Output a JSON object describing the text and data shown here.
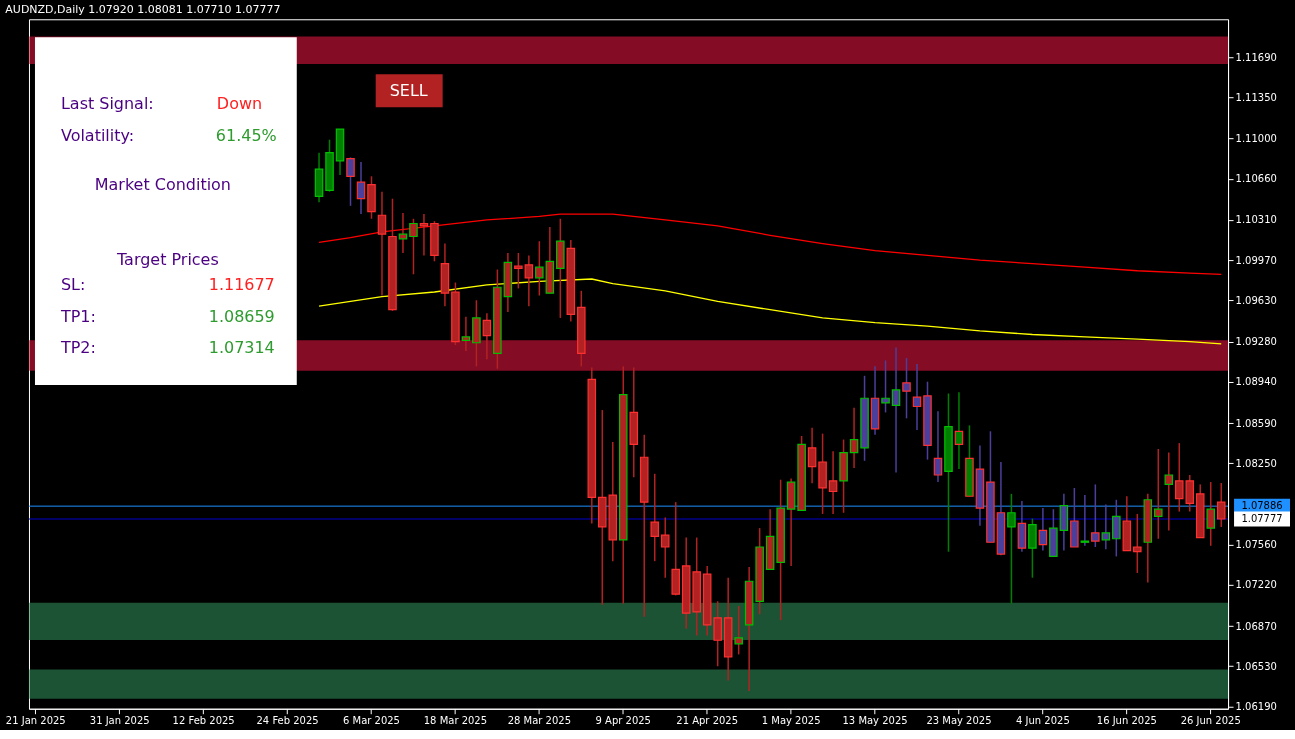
{
  "chart_data": {
    "type": "candlestick",
    "title": "AUDNZD,Daily 1.07920 1.08081 1.07710 1.07777",
    "categories": [
      "21 Jan 2025",
      null,
      null,
      null,
      null,
      null,
      null,
      null,
      "31 Jan 2025",
      null,
      null,
      null,
      null,
      null,
      null,
      null,
      "12 Feb 2025",
      null,
      null,
      null,
      null,
      null,
      null,
      null,
      "24 Feb 2025",
      null,
      null,
      null,
      null,
      null,
      null,
      null,
      "6 Mar 2025",
      null,
      null,
      null,
      null,
      null,
      null,
      null,
      "18 Mar 2025",
      null,
      null,
      null,
      null,
      null,
      null,
      null,
      "28 Mar 2025",
      null,
      null,
      null,
      null,
      null,
      null,
      null,
      "9 Apr 2025",
      null,
      null,
      null,
      null,
      null,
      null,
      null,
      "21 Apr 2025",
      null,
      null,
      null,
      null,
      null,
      null,
      null,
      "1 May 2025",
      null,
      null,
      null,
      null,
      null,
      null,
      null,
      "13 May 2025",
      null,
      null,
      null,
      null,
      null,
      null,
      null,
      "23 May 2025",
      null,
      null,
      null,
      null,
      null,
      null,
      null,
      "4 Jun 2025",
      null,
      null,
      null,
      null,
      null,
      null,
      null,
      "16 Jun 2025",
      null,
      null,
      null,
      null,
      null,
      null,
      null,
      "26 Jun 2025",
      null
    ],
    "ohlc": [
      null,
      null,
      null,
      null,
      null,
      null,
      null,
      null,
      null,
      null,
      null,
      null,
      null,
      null,
      null,
      null,
      null,
      null,
      null,
      null,
      null,
      null,
      null,
      null,
      null,
      null,
      null,
      [
        1.1051,
        1.1088,
        1.1046,
        1.1074
      ],
      [
        1.1056,
        1.1099,
        1.1055,
        1.1088
      ],
      [
        1.1081,
        1.1108,
        1.1069,
        1.1108
      ],
      [
        1.1083,
        1.1084,
        1.1043,
        1.1068
      ],
      [
        1.1063,
        1.108,
        1.1036,
        1.1049
      ],
      [
        1.1061,
        1.1068,
        1.1032,
        1.1038
      ],
      [
        1.1035,
        1.1055,
        1.0967,
        1.1019
      ],
      [
        1.1017,
        1.1049,
        1.0954,
        1.0955
      ],
      [
        1.1015,
        1.1037,
        1.1003,
        1.1019
      ],
      [
        1.1017,
        1.1032,
        1.0985,
        1.1028
      ],
      [
        1.1028,
        1.1036,
        1.1001,
        1.1026
      ],
      [
        1.1028,
        1.103,
        1.0996,
        1.1001
      ],
      [
        1.0994,
        1.1011,
        1.0958,
        1.0969
      ],
      [
        1.097,
        1.0978,
        1.0925,
        1.0928
      ],
      [
        1.0929,
        1.0949,
        1.092,
        1.0932
      ],
      [
        1.0927,
        1.0963,
        1.0907,
        1.0948
      ],
      [
        1.0946,
        1.0952,
        1.0913,
        1.0933
      ],
      [
        1.0918,
        1.0989,
        1.0905,
        1.0974
      ],
      [
        1.0966,
        1.1003,
        1.0953,
        1.0995
      ],
      [
        1.0992,
        1.1003,
        1.0973,
        1.099
      ],
      [
        1.0993,
        1.1001,
        1.0958,
        1.0982
      ],
      [
        1.0982,
        1.1013,
        1.0967,
        1.0991
      ],
      [
        1.0969,
        1.1025,
        1.0969,
        1.0996
      ],
      [
        1.099,
        1.1032,
        1.0948,
        1.1013
      ],
      [
        1.1007,
        1.1014,
        1.0945,
        1.0951
      ],
      [
        1.0957,
        1.0971,
        1.0907,
        1.0918
      ],
      [
        1.0896,
        1.0906,
        1.0774,
        1.0796
      ],
      [
        1.0796,
        1.087,
        1.0705,
        1.0771
      ],
      [
        1.0798,
        1.0843,
        1.0742,
        1.076
      ],
      [
        1.076,
        1.0907,
        1.0706,
        1.0883
      ],
      [
        1.0868,
        1.0906,
        1.0813,
        1.0841
      ],
      [
        1.083,
        1.0849,
        1.0695,
        1.0792
      ],
      [
        1.0775,
        1.0816,
        1.0742,
        1.0763
      ],
      [
        1.0764,
        1.0779,
        1.0728,
        1.0754
      ],
      [
        1.0735,
        1.0792,
        1.0713,
        1.0714
      ],
      [
        1.0738,
        1.0762,
        1.0685,
        1.0698
      ],
      [
        1.0733,
        1.0762,
        1.0679,
        1.0699
      ],
      [
        1.0731,
        1.0738,
        1.0679,
        1.0688
      ],
      [
        1.0694,
        1.0708,
        1.0653,
        1.0675
      ],
      [
        1.0694,
        1.0728,
        1.0641,
        1.0661
      ],
      [
        1.0672,
        1.0704,
        1.0663,
        1.0677
      ],
      [
        1.0688,
        1.0737,
        1.0632,
        1.0725
      ],
      [
        1.0708,
        1.077,
        1.0697,
        1.0754
      ],
      [
        1.0735,
        1.0786,
        1.0735,
        1.0763
      ],
      [
        1.0741,
        1.0811,
        1.0692,
        1.0787
      ],
      [
        1.0786,
        1.0812,
        1.0738,
        1.0809
      ],
      [
        1.0785,
        1.0848,
        1.0785,
        1.0841
      ],
      [
        1.0838,
        1.0855,
        1.0808,
        1.0822
      ],
      [
        1.0826,
        1.085,
        1.0782,
        1.0804
      ],
      [
        1.081,
        1.0835,
        1.0782,
        1.0801
      ],
      [
        1.081,
        1.0845,
        1.0783,
        1.0834
      ],
      [
        1.0834,
        1.0872,
        1.0821,
        1.0845
      ],
      [
        1.0838,
        1.0899,
        1.0827,
        1.088
      ],
      [
        1.088,
        1.0907,
        1.0849,
        1.0854
      ],
      [
        1.0876,
        1.0912,
        1.0868,
        1.088
      ],
      [
        1.0874,
        1.0923,
        1.0817,
        1.0887
      ],
      [
        1.0893,
        1.0914,
        1.0863,
        1.0886
      ],
      [
        1.0881,
        1.0909,
        1.0853,
        1.0873
      ],
      [
        1.0882,
        1.0894,
        1.0828,
        1.084
      ],
      [
        1.0829,
        1.0869,
        1.0809,
        1.0815
      ],
      [
        1.0818,
        1.0884,
        1.075,
        1.0856
      ],
      [
        1.0852,
        1.0885,
        1.082,
        1.0841
      ],
      [
        1.0829,
        1.0857,
        1.0797,
        1.0797
      ],
      [
        1.082,
        1.084,
        1.0772,
        1.0787
      ],
      [
        1.0809,
        1.0852,
        1.0758,
        1.0758
      ],
      [
        1.0783,
        1.0826,
        1.0747,
        1.0748
      ],
      [
        1.0771,
        1.0799,
        1.0706,
        1.0783
      ],
      [
        1.0774,
        1.0793,
        1.075,
        1.0753
      ],
      [
        1.0753,
        1.0778,
        1.0728,
        1.0773
      ],
      [
        1.0768,
        1.0787,
        1.0751,
        1.0756
      ],
      [
        1.0746,
        1.0786,
        1.0746,
        1.077
      ],
      [
        1.0768,
        1.0799,
        1.0751,
        1.0789
      ],
      [
        1.0776,
        1.0804,
        1.0754,
        1.0754
      ],
      [
        1.0758,
        1.0798,
        1.0755,
        1.0759
      ],
      [
        1.0766,
        1.0807,
        1.0754,
        1.0759
      ],
      [
        1.076,
        1.079,
        1.0752,
        1.0766
      ],
      [
        1.0761,
        1.0794,
        1.0746,
        1.078
      ],
      [
        1.0776,
        1.0797,
        1.0751,
        1.0751
      ],
      [
        1.0754,
        1.0782,
        1.0732,
        1.075
      ],
      [
        1.0758,
        1.0799,
        1.0724,
        1.0794
      ],
      [
        1.078,
        1.0837,
        1.0761,
        1.0786
      ],
      [
        1.0807,
        1.0834,
        1.0768,
        1.0815
      ],
      [
        1.081,
        1.0842,
        1.0784,
        1.0795
      ],
      [
        1.081,
        1.0815,
        1.0784,
        1.0791
      ],
      [
        1.0799,
        1.0807,
        1.0762,
        1.0762
      ],
      [
        1.077,
        1.0809,
        1.0755,
        1.0786
      ],
      [
        1.0792,
        1.08081,
        1.0771,
        1.07777
      ]
    ],
    "colors": [
      null,
      null,
      null,
      null,
      null,
      null,
      null,
      null,
      null,
      null,
      null,
      null,
      null,
      null,
      null,
      null,
      null,
      null,
      null,
      null,
      null,
      null,
      null,
      null,
      null,
      null,
      null,
      "#008000",
      "#008000",
      "#008000",
      "#4b3f9b",
      "#4b3f9b",
      "#b22222",
      "#b22222",
      "#b22222",
      "#b22222",
      "#b22222",
      "#b22222",
      "#b22222",
      "#b22222",
      "#b22222",
      "#b22222",
      "#b22222",
      "#b22222",
      "#b22222",
      "#b22222",
      "#b22222",
      "#b22222",
      "#b22222",
      "#b22222",
      "#b22222",
      "#b22222",
      "#b22222",
      "#b22222",
      "#b22222",
      "#b22222",
      "#b22222",
      "#b22222",
      "#b22222",
      "#b22222",
      "#b22222",
      "#b22222",
      "#b22222",
      "#b22222",
      "#b22222",
      "#b22222",
      "#b22222",
      "#b22222",
      "#b22222",
      "#b22222",
      "#b22222",
      "#b22222",
      "#b22222",
      "#b22222",
      "#b22222",
      "#b22222",
      "#b22222",
      "#b22222",
      "#b22222",
      "#4b3f9b",
      "#4b3f9b",
      "#4b3f9b",
      "#4b3f9b",
      "#4b3f9b",
      "#4b3f9b",
      "#4b3f9b",
      "#4b3f9b",
      "#008000",
      "#008000",
      "#008000",
      "#4b3f9b",
      "#4b3f9b",
      "#4b3f9b",
      "#008000",
      "#4b3f9b",
      "#008000",
      "#4b3f9b",
      "#4b3f9b",
      "#4b3f9b",
      "#4b3f9b",
      "#4b3f9b",
      "#4b3f9b",
      "#4b3f9b",
      "#4b3f9b",
      "#b22222",
      "#b22222",
      "#b22222",
      "#b22222",
      "#b22222",
      "#b22222",
      "#b22222",
      "#b22222",
      "#b22222",
      "#b22222"
    ],
    "series": [
      {
        "type": "line",
        "color": "#ff0000",
        "values": [
          null,
          null,
          null,
          null,
          null,
          null,
          null,
          null,
          null,
          null,
          null,
          null,
          null,
          null,
          null,
          null,
          null,
          null,
          null,
          null,
          null,
          null,
          null,
          null,
          null,
          null,
          null,
          1.1012,
          null,
          null,
          1.1016,
          null,
          null,
          1.1021,
          null,
          null,
          null,
          null,
          1.1026,
          null,
          null,
          null,
          null,
          1.1031,
          null,
          null,
          null,
          null,
          1.1034,
          null,
          1.1036,
          null,
          null,
          1.1036,
          null,
          1.1036,
          null,
          null,
          null,
          null,
          1.1031,
          null,
          null,
          null,
          null,
          1.1026,
          null,
          null,
          null,
          null,
          1.1018,
          null,
          null,
          null,
          null,
          1.1011,
          null,
          null,
          null,
          null,
          1.1005,
          null,
          null,
          null,
          null,
          1.1001,
          null,
          null,
          null,
          null,
          1.0997,
          null,
          null,
          null,
          null,
          1.0994,
          null,
          null,
          null,
          null,
          1.0991,
          null,
          null,
          null,
          null,
          1.0988,
          null,
          null,
          null,
          null,
          1.0986,
          null,
          null,
          1.0985
        ]
      },
      {
        "type": "line",
        "color": "#ffff00",
        "values": [
          null,
          null,
          null,
          null,
          null,
          null,
          null,
          null,
          null,
          null,
          null,
          null,
          null,
          null,
          null,
          null,
          null,
          null,
          null,
          null,
          null,
          null,
          null,
          null,
          null,
          null,
          null,
          1.0958,
          null,
          null,
          null,
          null,
          null,
          1.0966,
          null,
          null,
          null,
          null,
          1.097,
          null,
          null,
          null,
          null,
          1.0976,
          null,
          null,
          null,
          null,
          1.0979,
          null,
          null,
          null,
          null,
          1.0981,
          null,
          1.0977,
          null,
          null,
          null,
          null,
          1.0971,
          null,
          null,
          null,
          null,
          1.0962,
          null,
          null,
          null,
          null,
          1.0955,
          null,
          null,
          null,
          null,
          1.0948,
          null,
          null,
          null,
          null,
          1.0944,
          null,
          null,
          null,
          null,
          1.0941,
          null,
          null,
          null,
          null,
          1.0937,
          null,
          null,
          null,
          null,
          1.0934,
          null,
          null,
          null,
          null,
          1.0932,
          null,
          null,
          null,
          null,
          1.093,
          null,
          null,
          null,
          null,
          1.0928,
          null,
          null,
          1.0926
        ]
      }
    ],
    "ylim": [
      1.0617,
      1.1201
    ],
    "yticks": [
      {
        "value": 1.0619,
        "label": "1.06190"
      },
      {
        "value": 1.0653,
        "label": "1.06530"
      },
      {
        "value": 1.0687,
        "label": "1.06870"
      },
      {
        "value": 1.0722,
        "label": "1.07220"
      },
      {
        "value": 1.0756,
        "label": "1.07560"
      },
      {
        "value": 1.0825,
        "label": "1.08250"
      },
      {
        "value": 1.0859,
        "label": "1.08590"
      },
      {
        "value": 1.0894,
        "label": "1.08940"
      },
      {
        "value": 1.0928,
        "label": "1.09280"
      },
      {
        "value": 1.0963,
        "label": "1.09630"
      },
      {
        "value": 1.0997,
        "label": "1.09970"
      },
      {
        "value": 1.1031,
        "label": "1.10310"
      },
      {
        "value": 1.1066,
        "label": "1.10660"
      },
      {
        "value": 1.11,
        "label": "1.11000"
      },
      {
        "value": 1.1135,
        "label": "1.11350"
      },
      {
        "value": 1.1169,
        "label": "1.11690"
      }
    ],
    "ref_lines": [
      {
        "axis": "y",
        "value": 1.07886,
        "label": "1.07886",
        "color": "#1e90ff"
      },
      {
        "axis": "y",
        "value": 1.07777,
        "label": "1.07777",
        "color": "#0000cd"
      }
    ],
    "bands": [
      {
        "axis": "y",
        "from": 1.11632,
        "to": 1.11864,
        "color": "#dc143c"
      },
      {
        "axis": "y",
        "from": 1.09033,
        "to": 1.09291,
        "color": "#dc143c"
      },
      {
        "axis": "y",
        "from": 1.06752,
        "to": 1.07067,
        "color": "#2e8b57"
      },
      {
        "axis": "y",
        "from": 1.06254,
        "to": 1.06503,
        "color": "#2e8b57"
      }
    ],
    "annotations": [
      "Last Signal:",
      "Down",
      "Volatility:",
      "61.45%",
      "Market Condition",
      "Target Prices",
      "SL:",
      "1.11677",
      "TP1:",
      "1.08659",
      "TP2:",
      "1.07314",
      "SELL"
    ]
  }
}
